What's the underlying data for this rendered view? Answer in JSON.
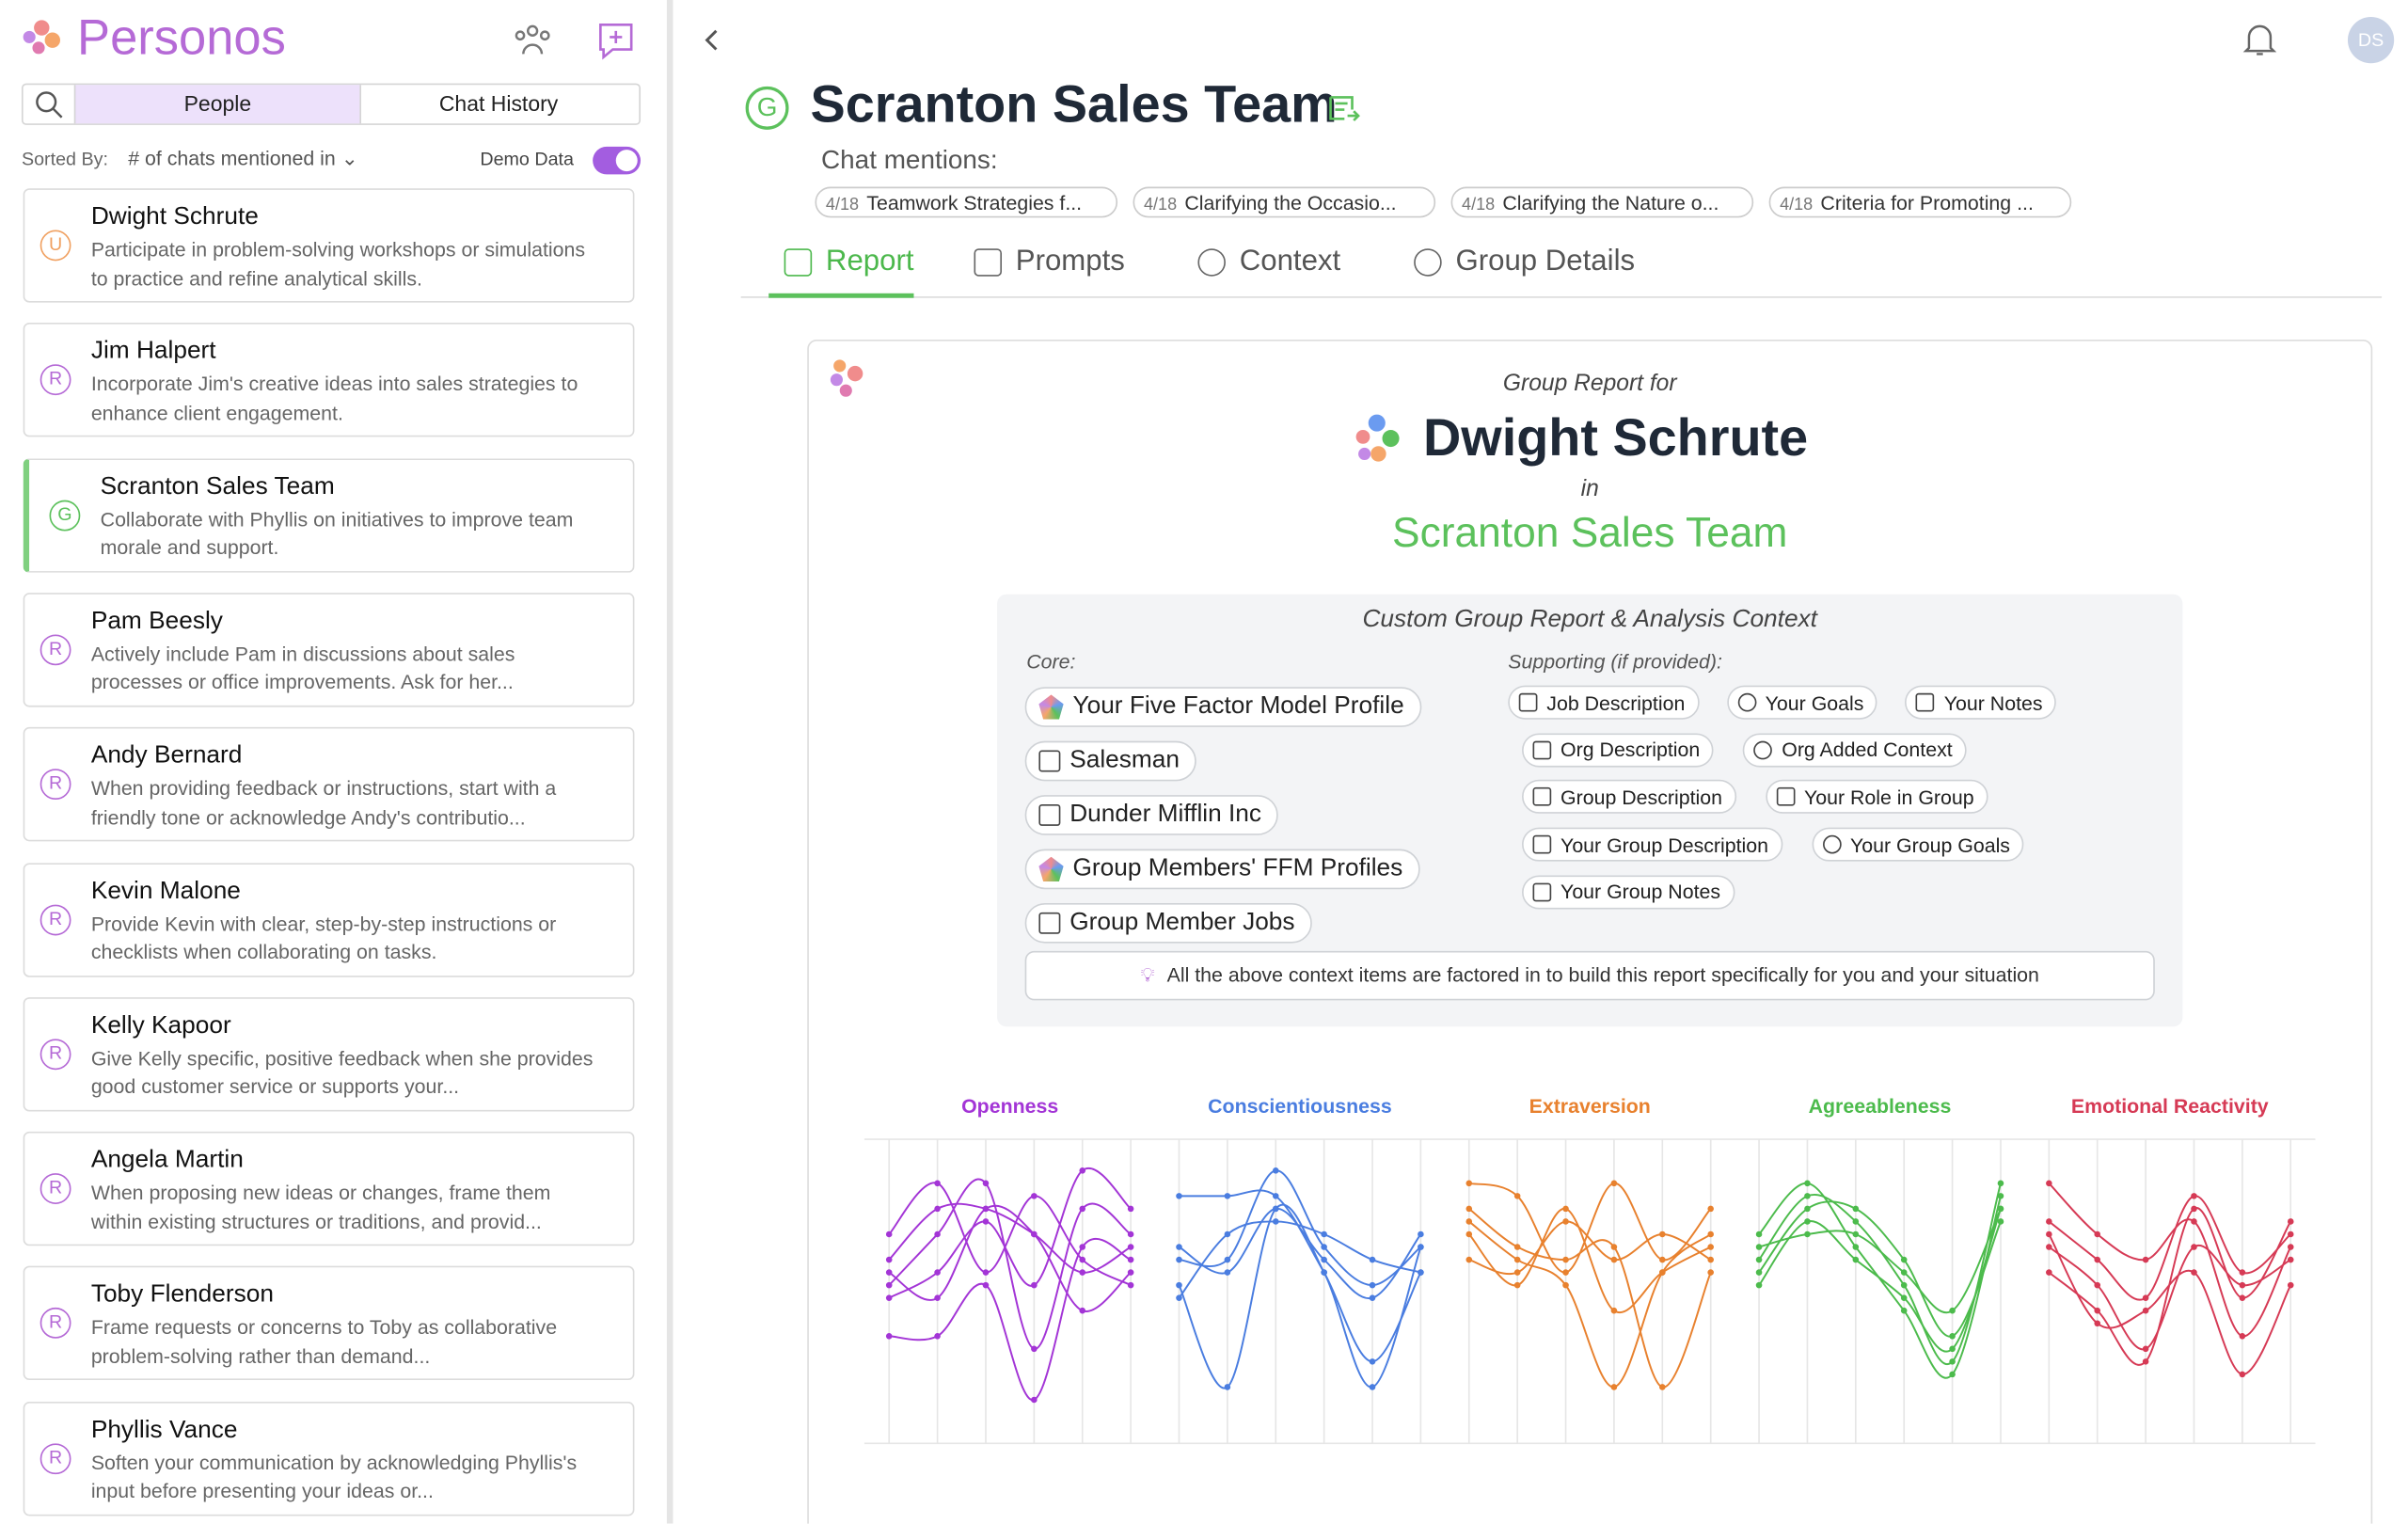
{
  "app": {
    "name": "Personos"
  },
  "sidebar": {
    "tabs": [
      "People",
      "Chat History"
    ],
    "sort_label": "Sorted By:",
    "sort_value": "# of chats mentioned in",
    "demo_label": "Demo Data",
    "items": [
      {
        "badge": "U",
        "name": "Dwight Schrute",
        "text": "Participate in problem-solving workshops or simulations to practice and refine analytical skills."
      },
      {
        "badge": "R",
        "name": "Jim Halpert",
        "text": "Incorporate Jim's creative ideas into sales strategies to enhance client engagement."
      },
      {
        "badge": "G",
        "name": "Scranton Sales Team",
        "text": "Collaborate with Phyllis on initiatives to improve team morale and support."
      },
      {
        "badge": "R",
        "name": "Pam Beesly",
        "text": "Actively include Pam in discussions about sales processes or office improvements. Ask for her..."
      },
      {
        "badge": "R",
        "name": "Andy Bernard",
        "text": "When providing feedback or instructions, start with a friendly tone or acknowledge Andy's contributio..."
      },
      {
        "badge": "R",
        "name": "Kevin Malone",
        "text": "Provide Kevin with clear, step-by-step instructions or checklists when collaborating on tasks."
      },
      {
        "badge": "R",
        "name": "Kelly Kapoor",
        "text": "Give Kelly specific, positive feedback when she provides good customer service or supports your..."
      },
      {
        "badge": "R",
        "name": "Angela Martin",
        "text": "When proposing new ideas or changes, frame them within existing structures or traditions, and provid..."
      },
      {
        "badge": "R",
        "name": "Toby Flenderson",
        "text": "Frame requests or concerns to Toby as collaborative problem-solving rather than demand..."
      },
      {
        "badge": "R",
        "name": "Phyllis Vance",
        "text": "Soften your communication by acknowledging Phyllis's input before presenting your ideas or..."
      }
    ]
  },
  "header": {
    "user_initials": "DS",
    "badge": "G",
    "title": "Scranton Sales Team",
    "mentions_label": "Chat mentions:",
    "mentions": [
      {
        "date": "4/18",
        "text": "Teamwork Strategies f..."
      },
      {
        "date": "4/18",
        "text": "Clarifying the Occasio..."
      },
      {
        "date": "4/18",
        "text": "Clarifying the Nature o..."
      },
      {
        "date": "4/18",
        "text": "Criteria for Promoting ..."
      }
    ]
  },
  "tabs": [
    "Report",
    "Prompts",
    "Context",
    "Group Details"
  ],
  "report": {
    "pre": "Group Report for",
    "person": "Dwight Schrute",
    "in": "in",
    "group": "Scranton Sales Team",
    "context": {
      "title": "Custom Group Report & Analysis Context",
      "core_label": "Core:",
      "core": [
        "Your Five Factor Model Profile",
        "Salesman",
        "Dunder Mifflin Inc",
        "Group Members' FFM Profiles",
        "Group Member Jobs"
      ],
      "supporting_label": "Supporting (if provided):",
      "supporting": [
        [
          "Job Description",
          "Your Goals",
          "Your Notes"
        ],
        [
          "Org Description",
          "Org Added Context"
        ],
        [
          "Group Description",
          "Your Role in Group"
        ],
        [
          "Your Group Description",
          "Your Group Goals"
        ],
        [
          "Your Group Notes"
        ]
      ],
      "note": "All the above context items are factored in to build this report specifically for you and your situation"
    }
  },
  "chart_data": {
    "type": "line",
    "ylim": [
      0,
      100
    ],
    "series": [
      {
        "name": "Openness",
        "color": "#a335d6",
        "lines": [
          [
            60,
            80,
            80,
            70,
            55,
            65
          ],
          [
            50,
            70,
            90,
            25,
            80,
            70
          ],
          [
            45,
            55,
            75,
            50,
            95,
            80
          ],
          [
            70,
            90,
            55,
            85,
            60,
            50
          ],
          [
            30,
            30,
            50,
            5,
            65,
            60
          ],
          [
            55,
            45,
            80,
            70,
            40,
            55
          ]
        ]
      },
      {
        "name": "Conscientiousness",
        "color": "#4a7de0",
        "lines": [
          [
            85,
            85,
            85,
            55,
            20,
            55
          ],
          [
            50,
            10,
            80,
            55,
            10,
            65
          ],
          [
            60,
            60,
            95,
            65,
            50,
            65
          ],
          [
            45,
            70,
            75,
            70,
            60,
            55
          ],
          [
            65,
            55,
            80,
            60,
            45,
            70
          ]
        ]
      },
      {
        "name": "Extraversion",
        "color": "#e8812e",
        "lines": [
          [
            90,
            85,
            55,
            90,
            60,
            80
          ],
          [
            75,
            60,
            50,
            10,
            55,
            70
          ],
          [
            70,
            50,
            80,
            40,
            55,
            65
          ],
          [
            80,
            65,
            60,
            65,
            10,
            55
          ],
          [
            60,
            55,
            75,
            60,
            70,
            60
          ]
        ]
      },
      {
        "name": "Agreeableness",
        "color": "#4cbb4c",
        "lines": [
          [
            60,
            85,
            75,
            50,
            20,
            90
          ],
          [
            55,
            80,
            80,
            60,
            30,
            75
          ],
          [
            70,
            90,
            65,
            40,
            15,
            85
          ],
          [
            65,
            70,
            70,
            55,
            40,
            80
          ],
          [
            50,
            75,
            60,
            45,
            25,
            80
          ]
        ]
      },
      {
        "name": "Emotional Reactivity",
        "color": "#d63a55",
        "lines": [
          [
            90,
            70,
            60,
            75,
            30,
            65
          ],
          [
            55,
            40,
            20,
            80,
            45,
            75
          ],
          [
            65,
            50,
            25,
            65,
            50,
            60
          ],
          [
            75,
            60,
            45,
            85,
            55,
            70
          ],
          [
            70,
            35,
            40,
            55,
            15,
            50
          ]
        ]
      }
    ]
  }
}
